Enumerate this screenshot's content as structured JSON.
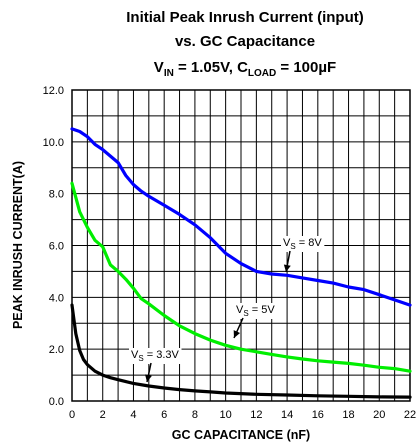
{
  "chart_data": {
    "type": "line",
    "title": {
      "line1": "Initial Peak Inrush Current (input)",
      "line2": "vs. GC Capacitance",
      "line3": {
        "v": "V",
        "v_sub": "IN",
        "v_val": " = 1.05V, C",
        "c_sub": "LOAD",
        "c_val": " = 100µF"
      }
    },
    "xlabel": "GC CAPACITANCE (nF)",
    "ylabel": "PEAK INRUSH CURRENT(A)",
    "xlim": [
      0,
      22
    ],
    "ylim": [
      0,
      12
    ],
    "xticks": [
      "0",
      "2",
      "4",
      "6",
      "8",
      "10",
      "12",
      "14",
      "16",
      "18",
      "20",
      "22"
    ],
    "yticks": [
      "0.0",
      "2.0",
      "4.0",
      "6.0",
      "8.0",
      "10.0",
      "12.0"
    ],
    "grid": true,
    "series": [
      {
        "name": "VS = 8V",
        "label": {
          "main": "V",
          "sub": "S",
          "rest": " = 8V"
        },
        "color": "#0000ff",
        "x": [
          0,
          0.5,
          1,
          1.5,
          2,
          2.5,
          3,
          3.5,
          4,
          4.5,
          5,
          6,
          7,
          8,
          9,
          10,
          11,
          12,
          13,
          14,
          15,
          16,
          17,
          18,
          19,
          20,
          21,
          22
        ],
        "y": [
          10.5,
          10.4,
          10.2,
          9.9,
          9.7,
          9.45,
          9.2,
          8.7,
          8.35,
          8.1,
          7.9,
          7.55,
          7.2,
          6.8,
          6.3,
          5.7,
          5.3,
          5.0,
          4.9,
          4.85,
          4.75,
          4.65,
          4.55,
          4.4,
          4.3,
          4.1,
          3.9,
          3.7
        ]
      },
      {
        "name": "VS = 5V",
        "label": {
          "main": "V",
          "sub": "S",
          "rest": " = 5V"
        },
        "color": "#00ee00",
        "x": [
          0,
          0.5,
          1,
          1.5,
          2,
          2.5,
          3,
          3.5,
          4,
          4.5,
          5,
          6,
          7,
          8,
          9,
          10,
          11,
          12,
          13,
          14,
          15,
          16,
          17,
          18,
          19,
          20,
          21,
          22
        ],
        "y": [
          8.4,
          7.3,
          6.7,
          6.2,
          5.95,
          5.25,
          5.0,
          4.7,
          4.35,
          3.95,
          3.75,
          3.3,
          2.9,
          2.6,
          2.35,
          2.15,
          2.0,
          1.9,
          1.8,
          1.7,
          1.62,
          1.55,
          1.5,
          1.45,
          1.38,
          1.3,
          1.25,
          1.15
        ]
      },
      {
        "name": "VS = 3.3V",
        "label": {
          "main": "V",
          "sub": "S",
          "rest": " = 3.3V"
        },
        "color": "#000000",
        "x": [
          0,
          0.25,
          0.5,
          0.75,
          1,
          1.5,
          2,
          2.5,
          3,
          3.5,
          4,
          5,
          6,
          7,
          8,
          9,
          10,
          12,
          14,
          16,
          18,
          20,
          22
        ],
        "y": [
          3.7,
          2.6,
          1.95,
          1.6,
          1.4,
          1.15,
          1.0,
          0.9,
          0.82,
          0.75,
          0.68,
          0.58,
          0.5,
          0.44,
          0.39,
          0.35,
          0.31,
          0.26,
          0.23,
          0.2,
          0.18,
          0.16,
          0.15
        ]
      }
    ]
  }
}
